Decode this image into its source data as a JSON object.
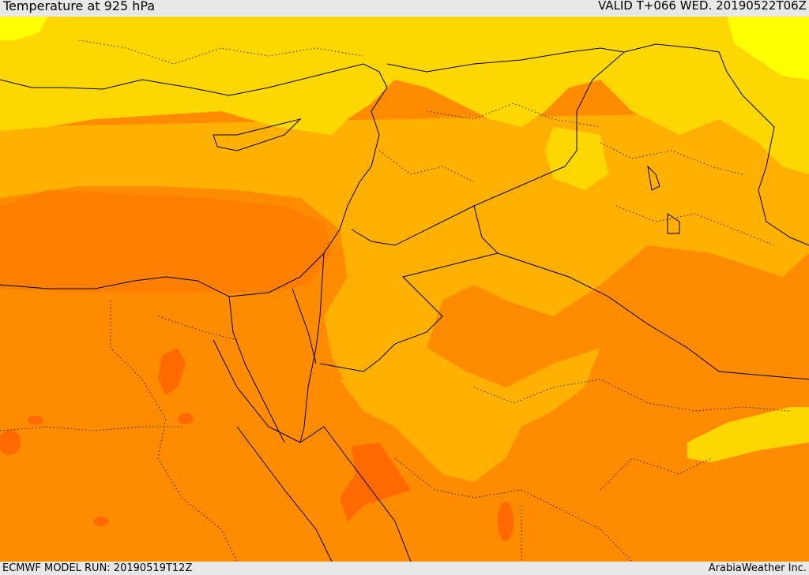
{
  "header": {
    "title": "Temperature at 925 hPa",
    "valid": "VALID T+066 WED. 20190522T06Z"
  },
  "footer": {
    "model_run": "ECMWF MODEL RUN: 20190519T12Z",
    "brand": "ArabiaWeather Inc."
  },
  "palette": {
    "yellow_bright": "#ffff00",
    "yellow": "#ffd700",
    "amber": "#ffb000",
    "orange": "#ff8c00",
    "dark_orange": "#ff6a00",
    "red_orange": "#ff4d00",
    "border_line": "#000000"
  }
}
